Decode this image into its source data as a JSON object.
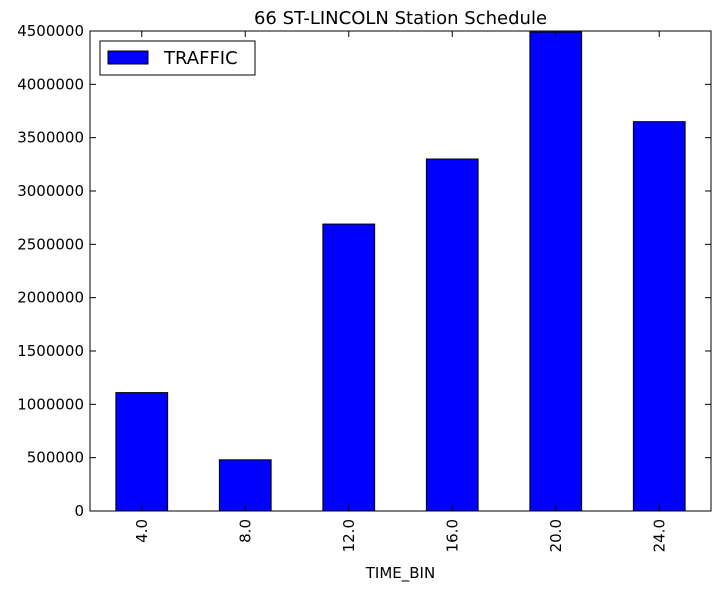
{
  "chart_data": {
    "type": "bar",
    "title": "66 ST-LINCOLN Station Schedule",
    "xlabel": "TIME_BIN",
    "ylabel": "",
    "categories": [
      "4.0",
      "8.0",
      "12.0",
      "16.0",
      "20.0",
      "24.0"
    ],
    "series": [
      {
        "name": "TRAFFIC",
        "values": [
          1110000,
          480000,
          2690000,
          3300000,
          4490000,
          3650000
        ],
        "color": "#0000ff"
      }
    ],
    "ylim": [
      0,
      4500000
    ],
    "yticks": [
      0,
      500000,
      1000000,
      1500000,
      2000000,
      2500000,
      3000000,
      3500000,
      4000000,
      4500000
    ],
    "ytick_labels": [
      "0",
      "500000",
      "1000000",
      "1500000",
      "2000000",
      "2500000",
      "3000000",
      "3500000",
      "4000000",
      "4500000"
    ],
    "grid": false,
    "legend_position": "top-left",
    "x_tick_rotation": "vertical"
  }
}
